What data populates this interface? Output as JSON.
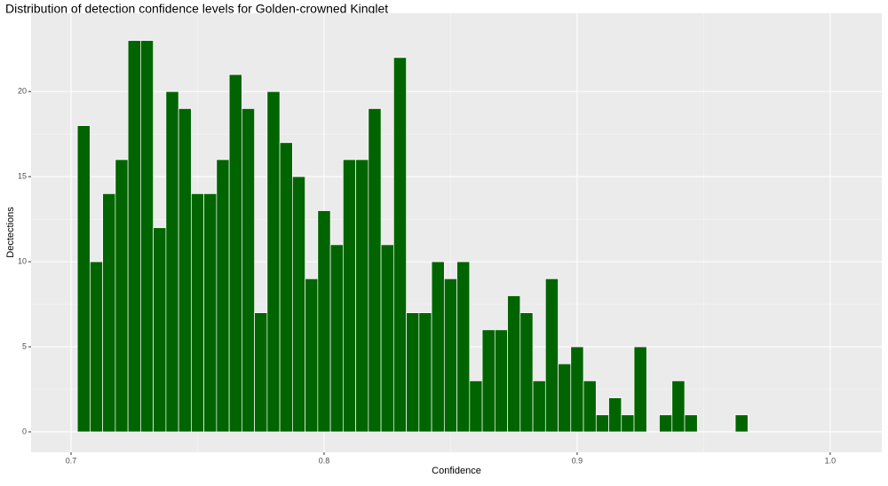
{
  "chart_data": {
    "type": "histogram",
    "title": "Distribution of detection confidence levels for Golden-crowned Kinglet",
    "x_label": "Confidence",
    "y_label": "Dectections",
    "bins": [
      0.7025,
      0.7075,
      0.7125,
      0.7175,
      0.7225,
      0.7275,
      0.7325,
      0.7375,
      0.7425,
      0.7475,
      0.7525,
      0.7575,
      0.7625,
      0.7675,
      0.7725,
      0.7775,
      0.7825,
      0.7875,
      0.7925,
      0.7975,
      0.8025,
      0.8075,
      0.8125,
      0.8175,
      0.8225,
      0.8275,
      0.8325,
      0.8375,
      0.8425,
      0.8475,
      0.8525,
      0.8575,
      0.8625,
      0.8675,
      0.8725,
      0.8775,
      0.8825,
      0.8875,
      0.8925,
      0.8975,
      0.9025,
      0.9075,
      0.9125,
      0.9175,
      0.9225,
      0.9275,
      0.9325,
      0.9375,
      0.9425,
      0.9475,
      0.9525,
      0.9575,
      0.9625,
      0.9675
    ],
    "values": [
      18,
      10,
      14,
      16,
      23,
      23,
      12,
      20,
      19,
      14,
      14,
      16,
      21,
      19,
      7,
      20,
      17,
      15,
      9,
      13,
      11,
      16,
      16,
      19,
      11,
      22,
      7,
      7,
      10,
      9,
      10,
      3,
      6,
      6,
      8,
      7,
      3,
      9,
      4,
      5,
      3,
      1,
      2,
      1,
      5,
      0,
      1,
      3,
      1,
      0,
      0,
      0,
      1
    ],
    "color": "#006400",
    "xlim": [
      0.6842,
      1.0204
    ],
    "ylim": [
      -1.2,
      24.6
    ],
    "xticks": [
      0.7,
      0.8,
      0.9,
      {
        "value": 1,
        "label": "1.0"
      }
    ],
    "yticks": [
      0,
      5,
      10,
      15,
      20
    ],
    "grid": true
  }
}
